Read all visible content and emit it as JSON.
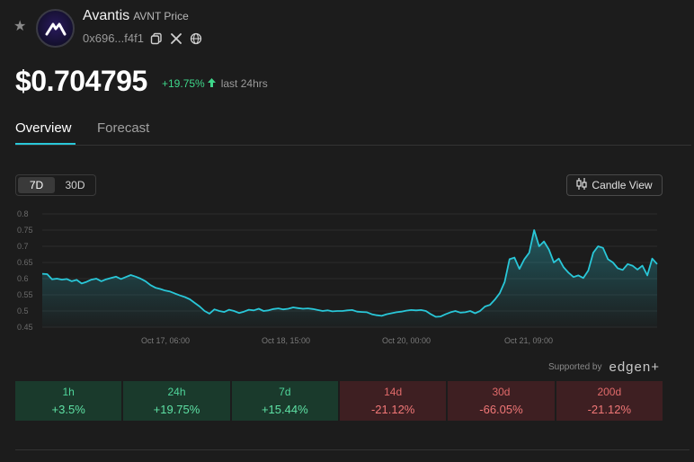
{
  "token": {
    "name": "Avantis",
    "symbol_label": "AVNT Price",
    "address": "0x696...f4f1",
    "price": "$0.704795",
    "change_24h": "+19.75%",
    "change_label": "last 24hrs"
  },
  "colors": {
    "accent": "#29c7d8",
    "up": "#4fd49a",
    "down": "#f07777"
  },
  "tabs": [
    {
      "label": "Overview",
      "active": true
    },
    {
      "label": "Forecast",
      "active": false
    }
  ],
  "range": {
    "options": [
      "7D",
      "30D"
    ],
    "selected": "7D"
  },
  "candle_view_label": "Candle View",
  "supported_by": {
    "label": "Supported by",
    "brand": "edgen+"
  },
  "performance": [
    {
      "period": "1h",
      "value": "+3.5%",
      "direction": "up"
    },
    {
      "period": "24h",
      "value": "+19.75%",
      "direction": "up"
    },
    {
      "period": "7d",
      "value": "+15.44%",
      "direction": "up"
    },
    {
      "period": "14d",
      "value": "-21.12%",
      "direction": "down"
    },
    {
      "period": "30d",
      "value": "-66.05%",
      "direction": "down"
    },
    {
      "period": "200d",
      "value": "-21.12%",
      "direction": "down"
    }
  ],
  "chart_data": {
    "type": "area",
    "ylim": [
      0.45,
      0.8
    ],
    "yticks": [
      "0.8",
      "0.75",
      "0.7",
      "0.65",
      "0.6",
      "0.55",
      "0.5",
      "0.45"
    ],
    "xticks": [
      "Oct 17, 06:00",
      "Oct 18, 15:00",
      "Oct 20, 00:00",
      "Oct 21, 09:00"
    ],
    "grid": true,
    "series": [
      {
        "values": [
          0.615,
          0.614,
          0.598,
          0.6,
          0.597,
          0.599,
          0.592,
          0.596,
          0.585,
          0.59,
          0.597,
          0.6,
          0.592,
          0.598,
          0.602,
          0.606,
          0.599,
          0.605,
          0.611,
          0.606,
          0.6,
          0.592,
          0.58,
          0.572,
          0.568,
          0.563,
          0.56,
          0.554,
          0.548,
          0.543,
          0.536,
          0.525,
          0.514,
          0.5,
          0.492,
          0.505,
          0.5,
          0.497,
          0.504,
          0.5,
          0.494,
          0.498,
          0.504,
          0.502,
          0.507,
          0.5,
          0.502,
          0.506,
          0.508,
          0.505,
          0.507,
          0.511,
          0.509,
          0.507,
          0.508,
          0.506,
          0.503,
          0.5,
          0.502,
          0.499,
          0.5,
          0.5,
          0.502,
          0.503,
          0.498,
          0.497,
          0.496,
          0.49,
          0.487,
          0.485,
          0.49,
          0.493,
          0.496,
          0.498,
          0.501,
          0.503,
          0.502,
          0.503,
          0.5,
          0.49,
          0.482,
          0.483,
          0.49,
          0.496,
          0.5,
          0.495,
          0.496,
          0.5,
          0.493,
          0.5,
          0.514,
          0.519,
          0.535,
          0.555,
          0.59,
          0.66,
          0.665,
          0.63,
          0.66,
          0.68,
          0.75,
          0.7,
          0.715,
          0.69,
          0.65,
          0.662,
          0.635,
          0.618,
          0.605,
          0.61,
          0.602,
          0.625,
          0.68,
          0.7,
          0.695,
          0.66,
          0.65,
          0.632,
          0.627,
          0.645,
          0.64,
          0.628,
          0.64,
          0.61,
          0.662,
          0.645
        ]
      }
    ]
  }
}
